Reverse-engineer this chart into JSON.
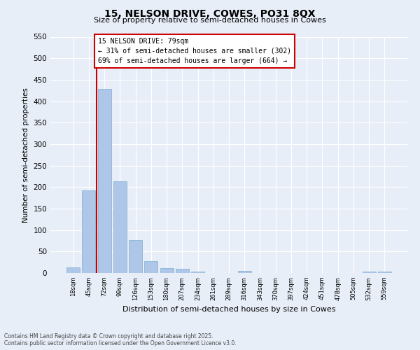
{
  "title_line1": "15, NELSON DRIVE, COWES, PO31 8QX",
  "title_line2": "Size of property relative to semi-detached houses in Cowes",
  "xlabel": "Distribution of semi-detached houses by size in Cowes",
  "ylabel": "Number of semi-detached properties",
  "categories": [
    "18sqm",
    "45sqm",
    "72sqm",
    "99sqm",
    "126sqm",
    "153sqm",
    "180sqm",
    "207sqm",
    "234sqm",
    "261sqm",
    "289sqm",
    "316sqm",
    "343sqm",
    "370sqm",
    "397sqm",
    "424sqm",
    "451sqm",
    "478sqm",
    "505sqm",
    "532sqm",
    "559sqm"
  ],
  "values": [
    13,
    193,
    428,
    213,
    77,
    27,
    11,
    9,
    3,
    0,
    0,
    5,
    0,
    0,
    0,
    0,
    0,
    0,
    0,
    4,
    3
  ],
  "bar_color": "#aec6e8",
  "bar_edge_color": "#7aafd4",
  "property_label": "15 NELSON DRIVE: 79sqm",
  "pct_smaller": 31,
  "num_smaller": 302,
  "pct_larger": 69,
  "num_larger": 664,
  "vline_x_index": 2,
  "ylim": [
    0,
    550
  ],
  "yticks": [
    0,
    50,
    100,
    150,
    200,
    250,
    300,
    350,
    400,
    450,
    500,
    550
  ],
  "annotation_box_color": "#cc0000",
  "footer_line1": "Contains HM Land Registry data © Crown copyright and database right 2025.",
  "footer_line2": "Contains public sector information licensed under the Open Government Licence v3.0.",
  "background_color": "#e8eef8",
  "grid_color": "#ffffff",
  "bar_width": 0.85
}
